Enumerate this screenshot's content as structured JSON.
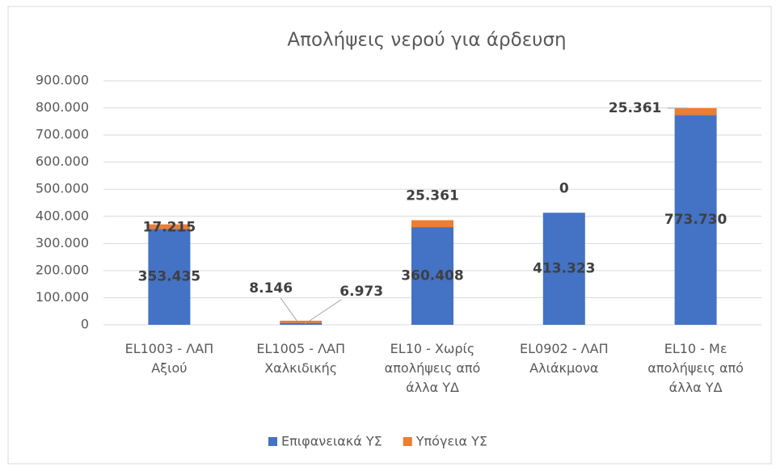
{
  "chart_data": {
    "type": "stacked_bar",
    "title": "Απολήψεις νερού για άρδευση",
    "categories": [
      "EL1003 - ΛΑΠ Αξιού",
      "EL1005 - ΛΑΠ Χαλκιδικής",
      "EL10 - Χωρίς απολήψεις από άλλα ΥΔ",
      "EL0902 - ΛΑΠ Αλιάκμονα",
      "EL10 - Με απολήψεις από άλλα ΥΔ"
    ],
    "series": [
      {
        "name": "Επιφανειακά ΥΣ",
        "color": "#4472c4",
        "values": [
          353435,
          6973,
          360408,
          413323,
          773730
        ],
        "value_labels": [
          "353.435",
          "6.973",
          "360.408",
          "413.323",
          "773.730"
        ]
      },
      {
        "name": "Υπόγεια ΥΣ",
        "color": "#ed7d31",
        "values": [
          17215,
          8146,
          25361,
          0,
          25361
        ],
        "value_labels": [
          "17.215",
          "8.146",
          "25.361",
          "0",
          "25.361"
        ]
      }
    ],
    "ylim": [
      0,
      900000
    ],
    "yticks": [
      0,
      {
        "value": 100000,
        "label": "100.000"
      },
      {
        "value": 200000,
        "label": "200.000"
      },
      {
        "value": 300000,
        "label": "300.000"
      },
      {
        "value": 400000,
        "label": "400.000"
      },
      {
        "value": 500000,
        "label": "500.000"
      },
      {
        "value": 600000,
        "label": "600.000"
      },
      {
        "value": 700000,
        "label": "700.000"
      },
      {
        "value": 800000,
        "label": "800.000"
      },
      {
        "value": 900000,
        "label": "900.000"
      }
    ],
    "grid": true,
    "legend": "bottom"
  }
}
